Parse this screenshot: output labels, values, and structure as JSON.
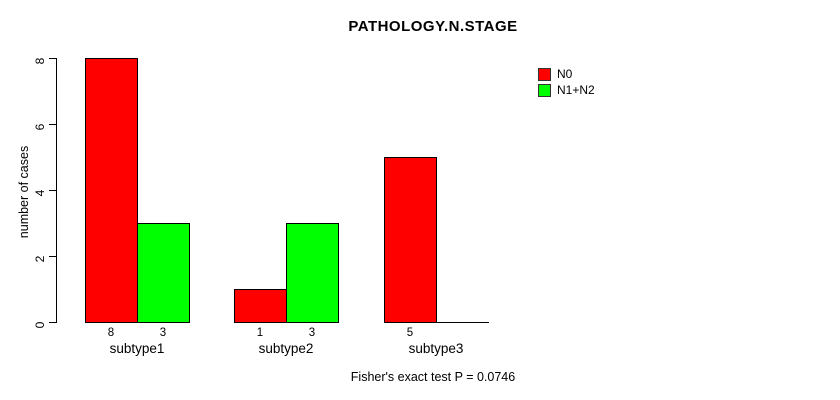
{
  "chart_data": {
    "type": "bar",
    "title": "PATHOLOGY.N.STAGE",
    "ylabel": "number of cases",
    "xlabel": "",
    "categories": [
      "subtype1",
      "subtype2",
      "subtype3"
    ],
    "series": [
      {
        "name": "N0",
        "color": "#ff0000",
        "values": [
          8,
          1,
          5
        ]
      },
      {
        "name": "N1+N2",
        "color": "#00ff00",
        "values": [
          3,
          3,
          0
        ]
      }
    ],
    "bar_value_labels": [
      [
        8,
        3
      ],
      [
        1,
        3
      ],
      [
        5,
        null
      ]
    ],
    "ylim": [
      0,
      8
    ],
    "yticks": [
      0,
      2,
      4,
      6,
      8
    ],
    "grid": false,
    "legend_position": "top-right",
    "annotation": "Fisher's exact test P = 0.0746"
  }
}
